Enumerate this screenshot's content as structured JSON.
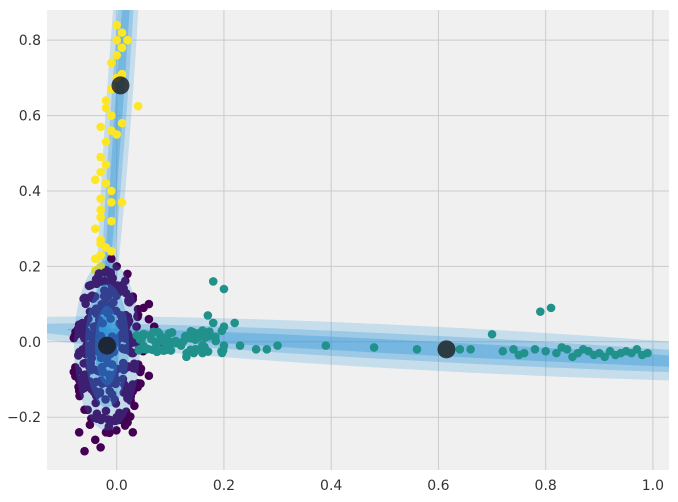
{
  "chart_data": {
    "type": "scatter",
    "title": "",
    "xlabel": "",
    "ylabel": "",
    "xlim": [
      -0.13,
      1.03
    ],
    "ylim": [
      -0.34,
      0.88
    ],
    "grid": true,
    "xticks": [
      0.0,
      0.2,
      0.4,
      0.6,
      0.8,
      1.0
    ],
    "xtick_labels": [
      "0.0",
      "0.2",
      "0.4",
      "0.6",
      "0.8",
      "1.0"
    ],
    "yticks": [
      -0.2,
      0.0,
      0.2,
      0.4,
      0.6,
      0.8
    ],
    "ytick_labels": [
      "−0.2",
      "0.0",
      "0.2",
      "0.4",
      "0.6",
      "0.8"
    ],
    "colors": {
      "background": "#f0f0f0",
      "figure": "#ffffff",
      "grid": "#cbcbcb",
      "purple": "#440154",
      "teal": "#21918c",
      "yellow": "#fde725",
      "ellipse": "#1f8fd6",
      "center": "#1a1a1a"
    },
    "series": [
      {
        "color": "purple",
        "points": [
          [
            -0.04,
            0.12
          ],
          [
            -0.03,
            0.16
          ],
          [
            -0.02,
            0.19
          ],
          [
            -0.01,
            0.22
          ],
          [
            0.0,
            0.2
          ],
          [
            0.02,
            0.18
          ],
          [
            -0.05,
            0.08
          ],
          [
            -0.06,
            0.03
          ],
          [
            -0.07,
            -0.03
          ],
          [
            -0.08,
            -0.08
          ],
          [
            -0.07,
            -0.13
          ],
          [
            -0.06,
            -0.18
          ],
          [
            -0.05,
            -0.22
          ],
          [
            -0.07,
            -0.24
          ],
          [
            -0.04,
            -0.26
          ],
          [
            -0.06,
            -0.29
          ],
          [
            0.03,
            -0.24
          ],
          [
            0.02,
            -0.15
          ],
          [
            0.04,
            -0.06
          ],
          [
            0.05,
            0.02
          ],
          [
            0.06,
            0.06
          ],
          [
            0.05,
            0.09
          ],
          [
            0.07,
            -0.02
          ],
          [
            0.08,
            0.0
          ],
          [
            0.06,
            -0.09
          ],
          [
            0.03,
            0.12
          ],
          [
            0.01,
            0.15
          ],
          [
            -0.08,
            0.01
          ],
          [
            0.04,
            -0.11
          ],
          [
            0.0,
            -0.2
          ],
          [
            -0.02,
            -0.24
          ],
          [
            0.07,
            0.04
          ],
          [
            0.09,
            -0.01
          ],
          [
            0.06,
            0.1
          ],
          [
            -0.03,
            -0.28
          ]
        ]
      },
      {
        "color": "teal",
        "points": [
          [
            0.08,
            0.02
          ],
          [
            0.1,
            0.0
          ],
          [
            0.12,
            -0.01
          ],
          [
            0.14,
            0.01
          ],
          [
            0.16,
            0.03
          ],
          [
            0.13,
            -0.04
          ],
          [
            0.16,
            -0.03
          ],
          [
            0.17,
            0.07
          ],
          [
            0.18,
            0.05
          ],
          [
            0.2,
            0.04
          ],
          [
            0.2,
            -0.01
          ],
          [
            0.22,
            0.05
          ],
          [
            0.23,
            -0.01
          ],
          [
            0.18,
            0.16
          ],
          [
            0.2,
            0.14
          ],
          [
            0.26,
            -0.02
          ],
          [
            0.28,
            -0.02
          ],
          [
            0.3,
            -0.01
          ],
          [
            0.39,
            -0.01
          ],
          [
            0.48,
            -0.015
          ],
          [
            0.56,
            -0.02
          ],
          [
            0.64,
            -0.02
          ],
          [
            0.66,
            -0.02
          ],
          [
            0.7,
            0.02
          ],
          [
            0.72,
            -0.025
          ],
          [
            0.74,
            -0.02
          ],
          [
            0.76,
            -0.03
          ],
          [
            0.78,
            -0.02
          ],
          [
            0.79,
            0.08
          ],
          [
            0.81,
            0.09
          ],
          [
            0.8,
            -0.025
          ],
          [
            0.82,
            -0.03
          ],
          [
            0.84,
            -0.02
          ],
          [
            0.86,
            -0.03
          ],
          [
            0.88,
            -0.025
          ],
          [
            0.9,
            -0.03
          ],
          [
            0.92,
            -0.025
          ],
          [
            0.94,
            -0.03
          ],
          [
            0.96,
            -0.03
          ],
          [
            0.98,
            -0.035
          ],
          [
            0.97,
            -0.02
          ],
          [
            0.93,
            -0.035
          ],
          [
            0.89,
            -0.035
          ],
          [
            0.85,
            -0.04
          ],
          [
            0.83,
            -0.015
          ],
          [
            0.87,
            -0.02
          ],
          [
            0.91,
            -0.04
          ],
          [
            0.95,
            -0.025
          ],
          [
            0.99,
            -0.03
          ],
          [
            0.75,
            -0.035
          ]
        ]
      },
      {
        "color": "yellow",
        "points": [
          [
            0.0,
            0.84
          ],
          [
            0.01,
            0.82
          ],
          [
            0.0,
            0.8
          ],
          [
            0.01,
            0.78
          ],
          [
            0.02,
            0.8
          ],
          [
            0.0,
            0.76
          ],
          [
            -0.01,
            0.74
          ],
          [
            0.01,
            0.71
          ],
          [
            0.0,
            0.7
          ],
          [
            -0.01,
            0.67
          ],
          [
            -0.02,
            0.64
          ],
          [
            -0.02,
            0.62
          ],
          [
            0.04,
            0.625
          ],
          [
            -0.01,
            0.6
          ],
          [
            0.01,
            0.58
          ],
          [
            -0.03,
            0.57
          ],
          [
            -0.01,
            0.56
          ],
          [
            -0.02,
            0.53
          ],
          [
            0.0,
            0.55
          ],
          [
            -0.03,
            0.49
          ],
          [
            -0.02,
            0.47
          ],
          [
            -0.03,
            0.45
          ],
          [
            -0.04,
            0.43
          ],
          [
            -0.02,
            0.42
          ],
          [
            -0.01,
            0.4
          ],
          [
            -0.03,
            0.38
          ],
          [
            -0.01,
            0.37
          ],
          [
            0.01,
            0.37
          ],
          [
            -0.03,
            0.35
          ],
          [
            -0.03,
            0.33
          ],
          [
            -0.01,
            0.32
          ],
          [
            -0.04,
            0.3
          ],
          [
            -0.03,
            0.27
          ],
          [
            -0.03,
            0.26
          ],
          [
            -0.02,
            0.25
          ],
          [
            -0.01,
            0.24
          ],
          [
            -0.03,
            0.23
          ],
          [
            -0.04,
            0.22
          ],
          [
            -0.03,
            0.2
          ],
          [
            -0.04,
            0.19
          ]
        ]
      }
    ],
    "centers": [
      {
        "x": 0.007,
        "y": 0.68,
        "color": "center"
      },
      {
        "x": -0.018,
        "y": -0.01,
        "color": "center"
      },
      {
        "x": 0.615,
        "y": -0.02,
        "color": "center"
      }
    ]
  }
}
